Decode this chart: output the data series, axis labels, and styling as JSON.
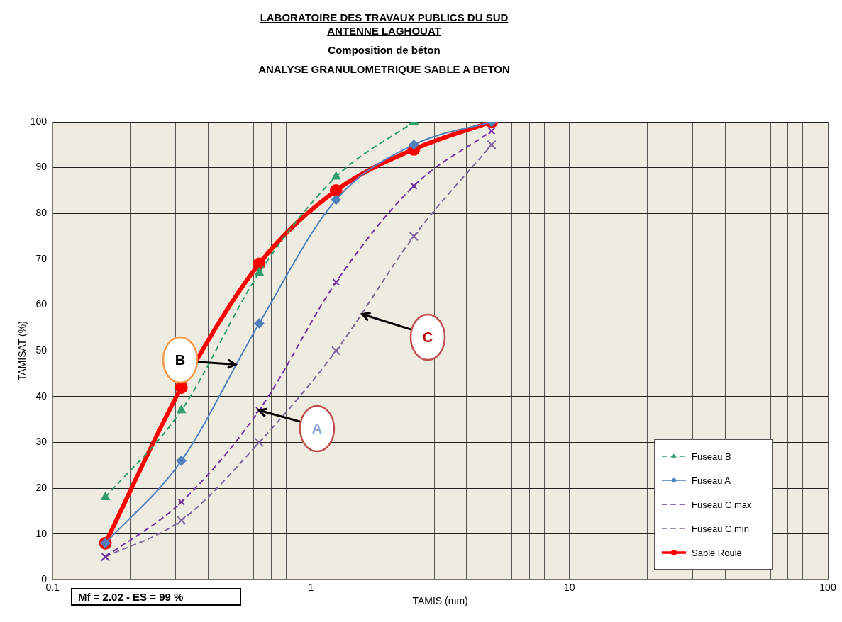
{
  "chart_data": {
    "type": "line",
    "title": "ANALYSE GRANULOMETRIQUE SABLE A BETON",
    "subtitle": "Composition de béton",
    "xlabel": "TAMIS (mm)",
    "ylabel": "TAMISAT (%)",
    "log": "x",
    "xlim": [
      0.1,
      100
    ],
    "ylim": [
      0,
      100
    ],
    "xticks": [
      0.1,
      {
        "value": 0.2,
        "label": null
      },
      {
        "value": 0.3,
        "label": null
      },
      {
        "value": 0.4,
        "label": null
      },
      {
        "value": 0.5,
        "label": null
      },
      {
        "value": 0.6,
        "label": null
      },
      {
        "value": 0.7,
        "label": null
      },
      {
        "value": 0.8,
        "label": null
      },
      {
        "value": 0.9,
        "label": null
      },
      1,
      {
        "value": 2,
        "label": null
      },
      {
        "value": 3,
        "label": null
      },
      {
        "value": 4,
        "label": null
      },
      {
        "value": 5,
        "label": null
      },
      {
        "value": 6,
        "label": null
      },
      {
        "value": 7,
        "label": null
      },
      {
        "value": 8,
        "label": null
      },
      {
        "value": 9,
        "label": null
      },
      10,
      {
        "value": 20,
        "label": null
      },
      {
        "value": 30,
        "label": null
      },
      {
        "value": 40,
        "label": null
      },
      {
        "value": 50,
        "label": null
      },
      {
        "value": 60,
        "label": null
      },
      {
        "value": 70,
        "label": null
      },
      {
        "value": 80,
        "label": null
      },
      {
        "value": 90,
        "label": null
      },
      100
    ],
    "yticks": [
      0,
      10,
      20,
      30,
      40,
      50,
      60,
      70,
      80,
      90,
      100
    ],
    "grid": true,
    "legend": "bottom right",
    "series": [
      {
        "name": "Fuseau B",
        "color": "#2e9e6a",
        "marker": "triangle",
        "line_style": "dashed",
        "x": [
          0.16,
          0.315,
          0.63,
          1.25,
          2.5
        ],
        "values": [
          18,
          37,
          67,
          88,
          100
        ]
      },
      {
        "name": "Fuseau A",
        "color": "#4f81bd",
        "marker": "diamond",
        "line_style": "solid",
        "x": [
          0.16,
          0.315,
          0.63,
          1.25,
          2.5,
          5
        ],
        "values": [
          8,
          26,
          56,
          83,
          95,
          100
        ]
      },
      {
        "name": "Fuseau C max",
        "color": "#7030a0",
        "marker": "cross",
        "line_style": "dashed",
        "x": [
          0.16,
          0.315,
          0.63,
          1.25,
          2.5,
          5
        ],
        "values": [
          5,
          17,
          37,
          65,
          86,
          98
        ]
      },
      {
        "name": "Fuseau C min",
        "color": "#8064a2",
        "marker": "cross",
        "line_style": "dashed",
        "x": [
          0.16,
          0.315,
          0.63,
          1.25,
          2.5,
          5
        ],
        "values": [
          5,
          13,
          30,
          50,
          75,
          95
        ]
      },
      {
        "name": "Sable Roulé",
        "color": "#ff0000",
        "marker": "circle",
        "line_style": "solid",
        "x": [
          0.16,
          0.315,
          0.63,
          1.25,
          2.5,
          5
        ],
        "values": [
          8,
          42,
          69,
          85,
          94,
          100
        ]
      }
    ],
    "annotations": [
      "LABORATOIRE DES TRAVAUX PUBLICS DU SUD",
      "ANTENNE LAGHOUAT",
      "Mf = 2.02  - ES = 99 %",
      {
        "text": "B",
        "x": 0.51,
        "y": 47
      },
      {
        "text": "A",
        "x": 0.63,
        "y": 37
      },
      {
        "text": "C",
        "x": 1.58,
        "y": 58
      }
    ]
  }
}
